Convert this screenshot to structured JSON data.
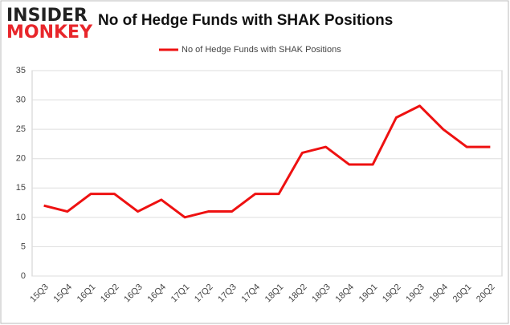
{
  "logo": {
    "line1": "INSIDER",
    "line2": "MONKEY"
  },
  "chart_data": {
    "type": "line",
    "title": "No of Hedge Funds with SHAK Positions",
    "categories": [
      "15Q3",
      "15Q4",
      "16Q1",
      "16Q2",
      "16Q3",
      "16Q4",
      "17Q1",
      "17Q2",
      "17Q3",
      "17Q4",
      "18Q1",
      "18Q2",
      "18Q3",
      "18Q4",
      "19Q1",
      "19Q2",
      "19Q3",
      "19Q4",
      "20Q1",
      "20Q2"
    ],
    "series": [
      {
        "name": "No of Hedge Funds with SHAK Positions",
        "color": "#ee1111",
        "values": [
          12,
          11,
          14,
          14,
          11,
          13,
          10,
          11,
          11,
          14,
          14,
          21,
          22,
          19,
          19,
          27,
          29,
          25,
          22,
          22
        ]
      }
    ],
    "ylim": [
      0,
      35
    ],
    "yticks": [
      0,
      5,
      10,
      15,
      20,
      25,
      30,
      35
    ],
    "grid": true,
    "legend": "top"
  }
}
